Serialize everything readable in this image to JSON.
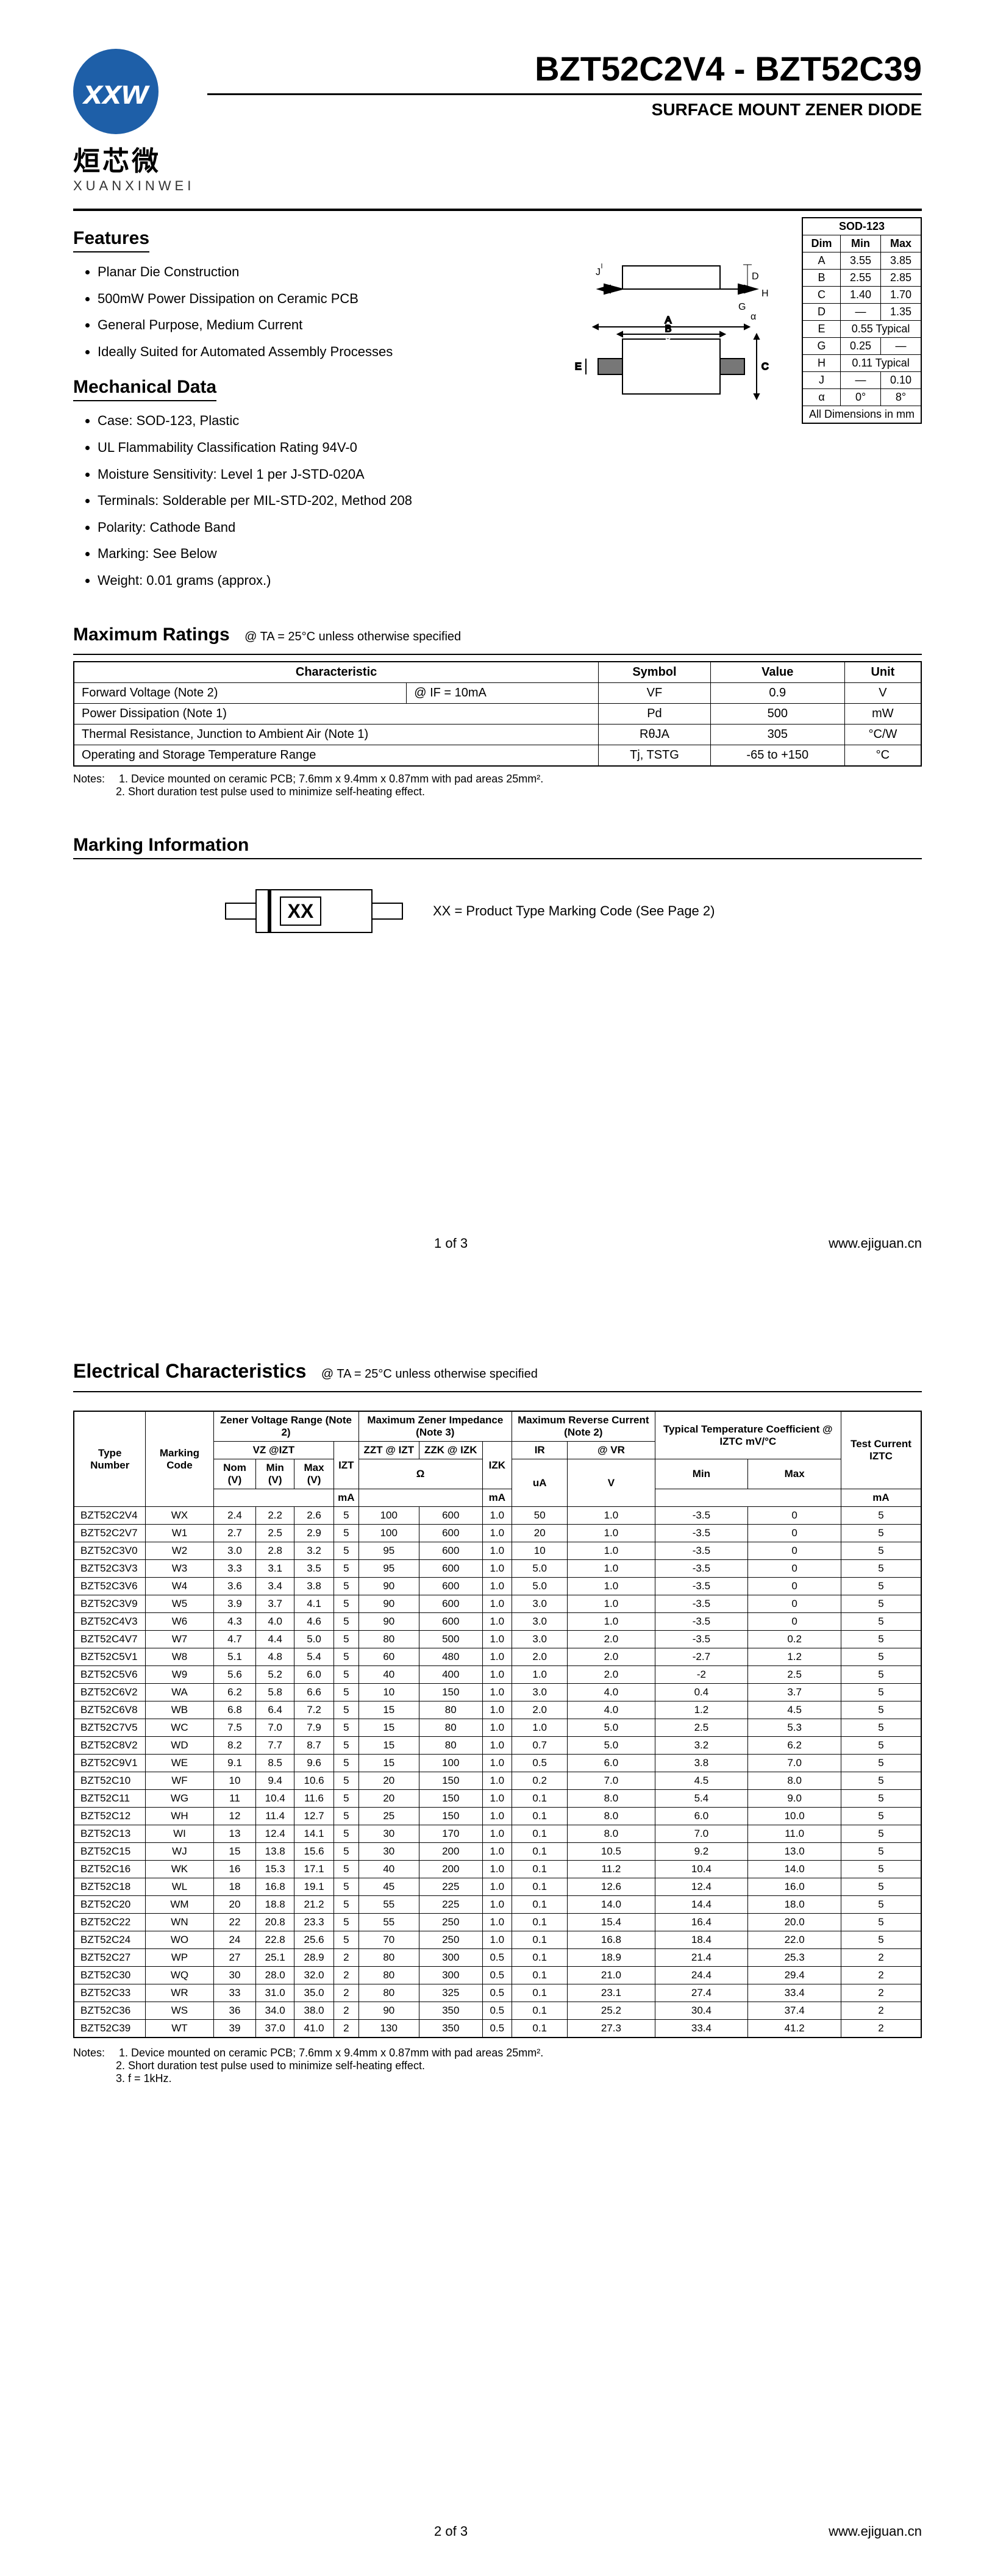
{
  "brand": {
    "logo_text": "xxw",
    "chinese": "烜芯微",
    "pinyin": "XUANXINWEI",
    "logo_bg": "#1e5fa8"
  },
  "header": {
    "title": "BZT52C2V4 - BZT52C39",
    "subtitle": "SURFACE MOUNT ZENER DIODE"
  },
  "features": {
    "heading": "Features",
    "items": [
      "Planar Die Construction",
      "500mW Power Dissipation on Ceramic PCB",
      "General Purpose, Medium Current",
      "Ideally Suited for Automated Assembly Processes"
    ]
  },
  "mechdata": {
    "heading": "Mechanical Data",
    "items": [
      "Case: SOD-123, Plastic",
      "UL Flammability Classification Rating 94V-0",
      "Moisture Sensitivity: Level 1 per J-STD-020A",
      "Terminals: Solderable per MIL-STD-202, Method 208",
      "Polarity: Cathode Band",
      "Marking: See Below",
      "Weight: 0.01 grams (approx.)"
    ]
  },
  "dim_table": {
    "title": "SOD-123",
    "headers": [
      "Dim",
      "Min",
      "Max"
    ],
    "rows": [
      [
        "A",
        "3.55",
        "3.85"
      ],
      [
        "B",
        "2.55",
        "2.85"
      ],
      [
        "C",
        "1.40",
        "1.70"
      ],
      [
        "D",
        "—",
        "1.35"
      ]
    ],
    "typ_rows": [
      {
        "dim": "E",
        "val": "0.55 Typical"
      }
    ],
    "rows2": [
      [
        "G",
        "0.25",
        "—"
      ]
    ],
    "typ_rows2": [
      {
        "dim": "H",
        "val": "0.11 Typical"
      }
    ],
    "rows3": [
      [
        "J",
        "—",
        "0.10"
      ],
      [
        "α",
        "0°",
        "8°"
      ]
    ],
    "footer": "All Dimensions in mm"
  },
  "max_ratings": {
    "heading": "Maximum Ratings",
    "cond": "@ TA = 25°C unless otherwise specified",
    "headers": [
      "Characteristic",
      "Symbol",
      "Value",
      "Unit"
    ],
    "rows": [
      {
        "char": "Forward Voltage (Note 2)",
        "charsub": "@ IF = 10mA",
        "sym": "VF",
        "val": "0.9",
        "unit": "V"
      },
      {
        "char": "Power Dissipation (Note 1)",
        "charsub": "",
        "sym": "Pd",
        "val": "500",
        "unit": "mW"
      },
      {
        "char": "Thermal Resistance, Junction to Ambient Air (Note 1)",
        "charsub": "",
        "sym": "RθJA",
        "val": "305",
        "unit": "°C/W"
      },
      {
        "char": "Operating and Storage Temperature Range",
        "charsub": "",
        "sym": "Tj, TSTG",
        "val": "-65 to +150",
        "unit": "°C"
      }
    ],
    "notes_lbl": "Notes:",
    "notes": [
      "1. Device mounted on ceramic PCB; 7.6mm x 9.4mm x 0.87mm with pad areas 25mm².",
      "2. Short duration test pulse used to minimize self-heating effect."
    ]
  },
  "marking_info": {
    "heading": "Marking Information",
    "code": "XX",
    "legend": "XX = Product Type Marking Code (See Page 2)"
  },
  "page1_footer": {
    "page": "1 of 3",
    "url": "www.ejiguan.cn"
  },
  "page2_footer": {
    "page": "2 of 3",
    "url": "www.ejiguan.cn"
  },
  "elec": {
    "heading": "Electrical Characteristics",
    "cond": "@ TA = 25°C unless otherwise specified",
    "head": {
      "type": "Type Number",
      "mark": "Marking Code",
      "zvr": "Zener Voltage Range (Note 2)",
      "mzi": "Maximum Zener Impedance (Note 3)",
      "mrc": "Maximum Reverse Current (Note 2)",
      "ttc": "Typical Temperature Coefficient @ IZTC mV/°C",
      "test": "Test Current IZTC",
      "vz": "VZ @IZT",
      "izt": "IZT",
      "zzt": "ZZT @ IZT",
      "zzk": "ZZK @ IZK",
      "izk": "IZK",
      "ir": "IR",
      "vr": "@ VR",
      "nom": "Nom (V)",
      "min": "Min (V)",
      "max": "Max (V)",
      "ma": "mA",
      "ohm": "Ω",
      "ua": "uA",
      "v": "V",
      "tmin": "Min",
      "tmax": "Max"
    },
    "rows": [
      [
        "BZT52C2V4",
        "WX",
        "2.4",
        "2.2",
        "2.6",
        "5",
        "100",
        "600",
        "1.0",
        "50",
        "1.0",
        "-3.5",
        "0",
        "5"
      ],
      [
        "BZT52C2V7",
        "W1",
        "2.7",
        "2.5",
        "2.9",
        "5",
        "100",
        "600",
        "1.0",
        "20",
        "1.0",
        "-3.5",
        "0",
        "5"
      ],
      [
        "BZT52C3V0",
        "W2",
        "3.0",
        "2.8",
        "3.2",
        "5",
        "95",
        "600",
        "1.0",
        "10",
        "1.0",
        "-3.5",
        "0",
        "5"
      ],
      [
        "BZT52C3V3",
        "W3",
        "3.3",
        "3.1",
        "3.5",
        "5",
        "95",
        "600",
        "1.0",
        "5.0",
        "1.0",
        "-3.5",
        "0",
        "5"
      ],
      [
        "BZT52C3V6",
        "W4",
        "3.6",
        "3.4",
        "3.8",
        "5",
        "90",
        "600",
        "1.0",
        "5.0",
        "1.0",
        "-3.5",
        "0",
        "5"
      ],
      [
        "BZT52C3V9",
        "W5",
        "3.9",
        "3.7",
        "4.1",
        "5",
        "90",
        "600",
        "1.0",
        "3.0",
        "1.0",
        "-3.5",
        "0",
        "5"
      ],
      [
        "BZT52C4V3",
        "W6",
        "4.3",
        "4.0",
        "4.6",
        "5",
        "90",
        "600",
        "1.0",
        "3.0",
        "1.0",
        "-3.5",
        "0",
        "5"
      ],
      [
        "BZT52C4V7",
        "W7",
        "4.7",
        "4.4",
        "5.0",
        "5",
        "80",
        "500",
        "1.0",
        "3.0",
        "2.0",
        "-3.5",
        "0.2",
        "5"
      ],
      [
        "BZT52C5V1",
        "W8",
        "5.1",
        "4.8",
        "5.4",
        "5",
        "60",
        "480",
        "1.0",
        "2.0",
        "2.0",
        "-2.7",
        "1.2",
        "5"
      ],
      [
        "BZT52C5V6",
        "W9",
        "5.6",
        "5.2",
        "6.0",
        "5",
        "40",
        "400",
        "1.0",
        "1.0",
        "2.0",
        "-2",
        "2.5",
        "5"
      ],
      [
        "BZT52C6V2",
        "WA",
        "6.2",
        "5.8",
        "6.6",
        "5",
        "10",
        "150",
        "1.0",
        "3.0",
        "4.0",
        "0.4",
        "3.7",
        "5"
      ],
      [
        "BZT52C6V8",
        "WB",
        "6.8",
        "6.4",
        "7.2",
        "5",
        "15",
        "80",
        "1.0",
        "2.0",
        "4.0",
        "1.2",
        "4.5",
        "5"
      ],
      [
        "BZT52C7V5",
        "WC",
        "7.5",
        "7.0",
        "7.9",
        "5",
        "15",
        "80",
        "1.0",
        "1.0",
        "5.0",
        "2.5",
        "5.3",
        "5"
      ],
      [
        "BZT52C8V2",
        "WD",
        "8.2",
        "7.7",
        "8.7",
        "5",
        "15",
        "80",
        "1.0",
        "0.7",
        "5.0",
        "3.2",
        "6.2",
        "5"
      ],
      [
        "BZT52C9V1",
        "WE",
        "9.1",
        "8.5",
        "9.6",
        "5",
        "15",
        "100",
        "1.0",
        "0.5",
        "6.0",
        "3.8",
        "7.0",
        "5"
      ],
      [
        "BZT52C10",
        "WF",
        "10",
        "9.4",
        "10.6",
        "5",
        "20",
        "150",
        "1.0",
        "0.2",
        "7.0",
        "4.5",
        "8.0",
        "5"
      ],
      [
        "BZT52C11",
        "WG",
        "11",
        "10.4",
        "11.6",
        "5",
        "20",
        "150",
        "1.0",
        "0.1",
        "8.0",
        "5.4",
        "9.0",
        "5"
      ],
      [
        "BZT52C12",
        "WH",
        "12",
        "11.4",
        "12.7",
        "5",
        "25",
        "150",
        "1.0",
        "0.1",
        "8.0",
        "6.0",
        "10.0",
        "5"
      ],
      [
        "BZT52C13",
        "WI",
        "13",
        "12.4",
        "14.1",
        "5",
        "30",
        "170",
        "1.0",
        "0.1",
        "8.0",
        "7.0",
        "11.0",
        "5"
      ],
      [
        "BZT52C15",
        "WJ",
        "15",
        "13.8",
        "15.6",
        "5",
        "30",
        "200",
        "1.0",
        "0.1",
        "10.5",
        "9.2",
        "13.0",
        "5"
      ],
      [
        "BZT52C16",
        "WK",
        "16",
        "15.3",
        "17.1",
        "5",
        "40",
        "200",
        "1.0",
        "0.1",
        "11.2",
        "10.4",
        "14.0",
        "5"
      ],
      [
        "BZT52C18",
        "WL",
        "18",
        "16.8",
        "19.1",
        "5",
        "45",
        "225",
        "1.0",
        "0.1",
        "12.6",
        "12.4",
        "16.0",
        "5"
      ],
      [
        "BZT52C20",
        "WM",
        "20",
        "18.8",
        "21.2",
        "5",
        "55",
        "225",
        "1.0",
        "0.1",
        "14.0",
        "14.4",
        "18.0",
        "5"
      ],
      [
        "BZT52C22",
        "WN",
        "22",
        "20.8",
        "23.3",
        "5",
        "55",
        "250",
        "1.0",
        "0.1",
        "15.4",
        "16.4",
        "20.0",
        "5"
      ],
      [
        "BZT52C24",
        "WO",
        "24",
        "22.8",
        "25.6",
        "5",
        "70",
        "250",
        "1.0",
        "0.1",
        "16.8",
        "18.4",
        "22.0",
        "5"
      ],
      [
        "BZT52C27",
        "WP",
        "27",
        "25.1",
        "28.9",
        "2",
        "80",
        "300",
        "0.5",
        "0.1",
        "18.9",
        "21.4",
        "25.3",
        "2"
      ],
      [
        "BZT52C30",
        "WQ",
        "30",
        "28.0",
        "32.0",
        "2",
        "80",
        "300",
        "0.5",
        "0.1",
        "21.0",
        "24.4",
        "29.4",
        "2"
      ],
      [
        "BZT52C33",
        "WR",
        "33",
        "31.0",
        "35.0",
        "2",
        "80",
        "325",
        "0.5",
        "0.1",
        "23.1",
        "27.4",
        "33.4",
        "2"
      ],
      [
        "BZT52C36",
        "WS",
        "36",
        "34.0",
        "38.0",
        "2",
        "90",
        "350",
        "0.5",
        "0.1",
        "25.2",
        "30.4",
        "37.4",
        "2"
      ],
      [
        "BZT52C39",
        "WT",
        "39",
        "37.0",
        "41.0",
        "2",
        "130",
        "350",
        "0.5",
        "0.1",
        "27.3",
        "33.4",
        "41.2",
        "2"
      ]
    ],
    "notes_lbl": "Notes:",
    "notes": [
      "1. Device mounted on ceramic PCB; 7.6mm x 9.4mm x 0.87mm with pad areas 25mm².",
      "2. Short duration test pulse used to minimize self-heating effect.",
      "3. f = 1kHz."
    ]
  }
}
